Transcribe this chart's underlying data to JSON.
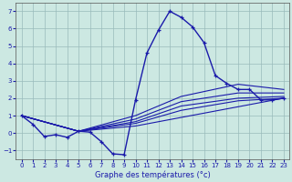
{
  "title": "Graphe des températures (°c)",
  "bg_color": "#cce8e2",
  "grid_color": "#99bbbb",
  "line_color": "#1a1aaa",
  "ylim": [
    -1.5,
    7.5
  ],
  "xlim": [
    -0.5,
    23.5
  ],
  "yticks": [
    -1,
    0,
    1,
    2,
    3,
    4,
    5,
    6,
    7
  ],
  "xticks": [
    0,
    1,
    2,
    3,
    4,
    5,
    6,
    7,
    8,
    9,
    10,
    11,
    12,
    13,
    14,
    15,
    16,
    17,
    18,
    19,
    20,
    21,
    22,
    23
  ],
  "main_x": [
    0,
    1,
    2,
    3,
    4,
    5,
    6,
    7,
    8,
    9,
    10,
    11,
    12,
    13,
    14,
    15,
    16,
    17,
    18,
    19,
    20,
    21,
    22,
    23
  ],
  "main_y": [
    1.0,
    0.5,
    -0.2,
    -0.1,
    -0.25,
    0.1,
    0.05,
    -0.5,
    -1.2,
    -1.25,
    1.9,
    4.6,
    5.9,
    7.0,
    6.65,
    6.1,
    5.2,
    3.3,
    2.85,
    2.5,
    2.5,
    1.9,
    1.9,
    2.0
  ],
  "extra_lines": [
    {
      "x": [
        0,
        5,
        10,
        23
      ],
      "y": [
        1.0,
        0.1,
        0.4,
        2.0
      ]
    },
    {
      "x": [
        0,
        5,
        10,
        14,
        19,
        23
      ],
      "y": [
        1.0,
        0.1,
        0.55,
        1.3,
        1.85,
        2.0
      ]
    },
    {
      "x": [
        0,
        5,
        10,
        14,
        19,
        23
      ],
      "y": [
        1.0,
        0.1,
        0.65,
        1.55,
        2.0,
        2.1
      ]
    },
    {
      "x": [
        0,
        5,
        10,
        14,
        19,
        23
      ],
      "y": [
        1.0,
        0.1,
        0.8,
        1.8,
        2.3,
        2.3
      ]
    },
    {
      "x": [
        0,
        5,
        10,
        14,
        19,
        23
      ],
      "y": [
        1.0,
        0.1,
        1.0,
        2.1,
        2.8,
        2.5
      ]
    }
  ]
}
